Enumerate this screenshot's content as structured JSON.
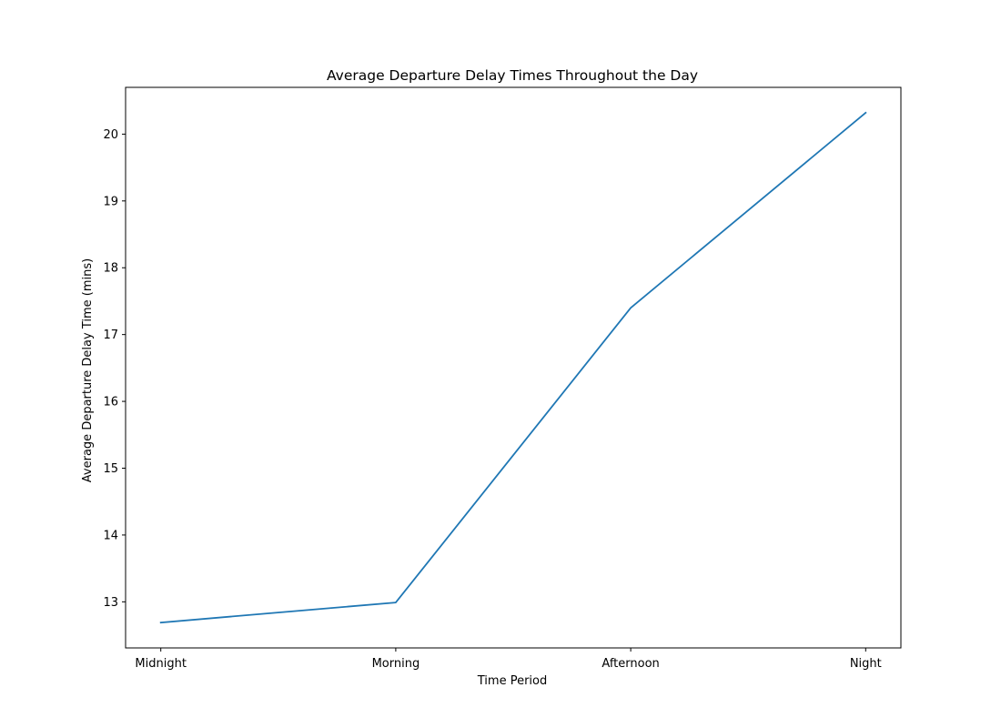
{
  "chart_data": {
    "type": "line",
    "title": "Average Departure Delay Times Throughout the Day",
    "xlabel": "Time Period",
    "ylabel": "Average Departure Delay Time (mins)",
    "categories": [
      "Midnight",
      "Morning",
      "Afternoon",
      "Night"
    ],
    "series": [
      {
        "values": [
          12.69,
          12.99,
          17.4,
          20.32
        ]
      }
    ],
    "yticks": [
      13,
      14,
      15,
      16,
      17,
      18,
      19,
      20
    ],
    "ylim": [
      12.31,
      20.7
    ],
    "grid": false,
    "line_color": "#1f77b4"
  }
}
